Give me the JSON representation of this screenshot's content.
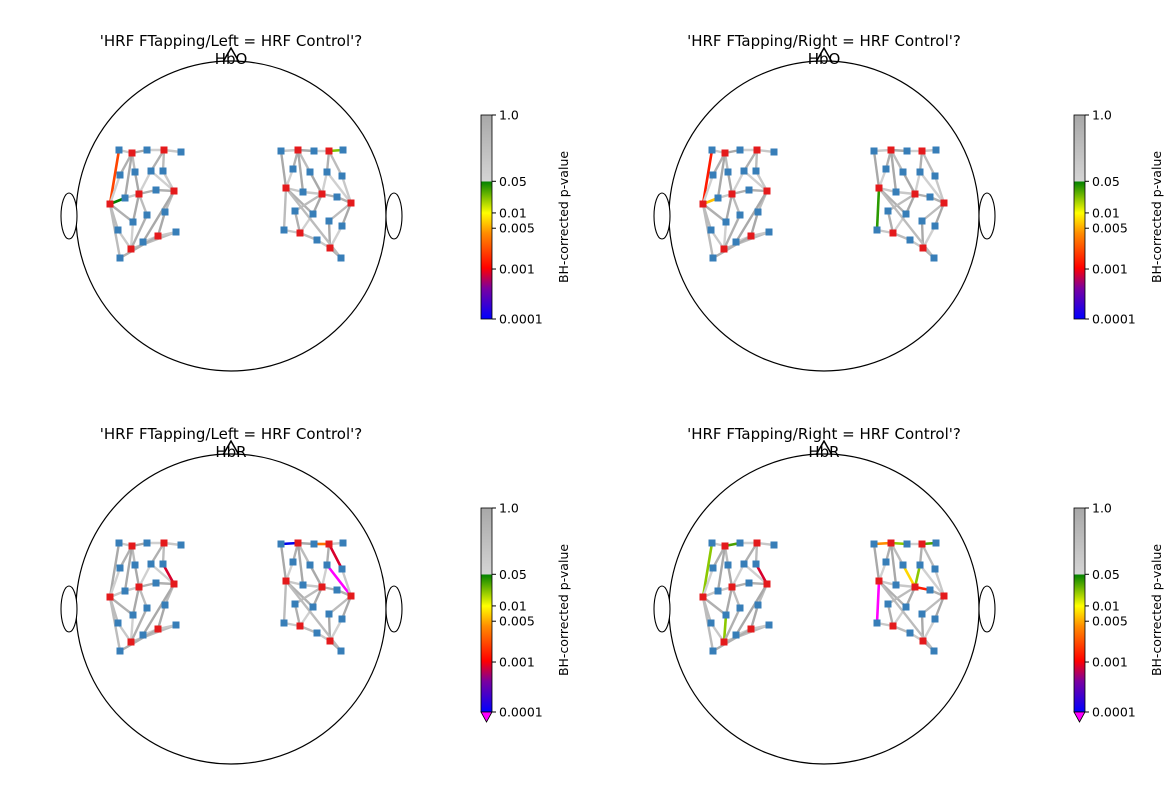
{
  "chart_data": {
    "type": "topomap",
    "colorbar": {
      "label": "BH-corrected p-value",
      "ticks": [
        "1.0",
        "0.05",
        "0.01",
        "0.005",
        "0.001",
        "0.0001"
      ],
      "colors": {
        "nonsig_top": "#a8a8a8",
        "nonsig_bottom": "#d4d4d4",
        "p05": "#008000",
        "p01": "#ffff00",
        "p005": "#ff8c00",
        "p001": "#ff0000",
        "p0001": "#0000ff",
        "under": "#ff00ff"
      }
    },
    "optode_colors": {
      "source": "#e41a1c",
      "detector": "#377eb8"
    },
    "panels": [
      {
        "title": "'HRF FTapping/Left = HRF Control'?",
        "subtitle": "HbO",
        "extend_min": false,
        "sig": [
          {
            "ch": "L:S3-D1x",
            "color": "#ff4500"
          },
          {
            "ch": "L:S3-D8",
            "color": "#008000"
          },
          {
            "ch": "R:S2-D3",
            "color": "#7fc400"
          }
        ]
      },
      {
        "title": "'HRF FTapping/Right = HRF Control'?",
        "subtitle": "HbO",
        "extend_min": false,
        "sig": [
          {
            "ch": "L:S3-D1x",
            "color": "#ff1a00"
          },
          {
            "ch": "L:S3-D8",
            "color": "#ffbf00"
          },
          {
            "ch": "R:S3-D13",
            "color": "#2a9a00"
          }
        ]
      },
      {
        "title": "'HRF FTapping/Left = HRF Control'?",
        "subtitle": "HbR",
        "extend_min": true,
        "sig": [
          {
            "ch": "L:S4-D4",
            "color": "#8cc800"
          },
          {
            "ch": "L:S5-D7",
            "color": "#d8002c"
          },
          {
            "ch": "L:S5-D3",
            "color": "#ff00ff"
          },
          {
            "ch": "R:S1-D1",
            "color": "#0000ee"
          },
          {
            "ch": "R:S1-D6",
            "color": "#ffb000"
          },
          {
            "ch": "R:S2-D2",
            "color": "#ff7000"
          },
          {
            "ch": "R:S4-D4",
            "color": "#8cc800"
          },
          {
            "ch": "R:S2-D7",
            "color": "#d8002c"
          },
          {
            "ch": "R:S5-D6",
            "color": "#ff00ff"
          },
          {
            "ch": "R:S4-D7",
            "color": "#ff00ff"
          },
          {
            "ch": "R:S7-D9",
            "color": "#ff7000"
          }
        ]
      },
      {
        "title": "'HRF FTapping/Right = HRF Control'?",
        "subtitle": "HbR",
        "extend_min": true,
        "sig": [
          {
            "ch": "L:S1-D2",
            "color": "#4aa000"
          },
          {
            "ch": "L:S4-D4",
            "color": "#4aa000"
          },
          {
            "ch": "L:S3-D1x",
            "color": "#8cc800"
          },
          {
            "ch": "L:S5-D3",
            "color": "#d8002c"
          },
          {
            "ch": "L:S5-D7",
            "color": "#d8002c"
          },
          {
            "ch": "L:S5-D8x",
            "color": "#d8002c"
          },
          {
            "ch": "L:S5-D15",
            "color": "#ff00ff"
          },
          {
            "ch": "L:S6-D11",
            "color": "#8cc800"
          },
          {
            "ch": "R:S1-D1",
            "color": "#ff8c00"
          },
          {
            "ch": "R:S3-D13",
            "color": "#ff00ff"
          },
          {
            "ch": "R:S1-D2",
            "color": "#8cc800"
          },
          {
            "ch": "R:S2-D5",
            "color": "#8cc800"
          },
          {
            "ch": "R:S2-D3x",
            "color": "#4aa000"
          },
          {
            "ch": "R:S4-D5",
            "color": "#ffd700"
          },
          {
            "ch": "R:S4-D6",
            "color": "#8cc800"
          },
          {
            "ch": "R:S3-D9",
            "color": "#2a9a00"
          },
          {
            "ch": "R:S4-D9",
            "color": "#ff1a00"
          },
          {
            "ch": "R:S7-D9",
            "color": "#ffa000"
          }
        ]
      }
    ]
  }
}
